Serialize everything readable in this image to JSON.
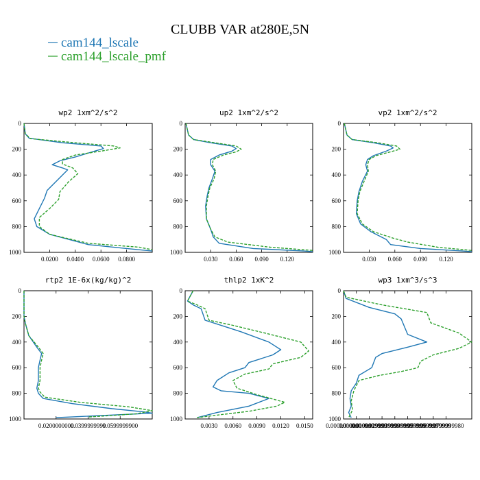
{
  "title": "CLUBB VAR at280E,5N",
  "legend": [
    {
      "label": "cam144_lscale",
      "color": "#1f77b4",
      "dash": "solid"
    },
    {
      "label": "cam144_lscale_pmf",
      "color": "#2ca02c",
      "dash": "dashed"
    }
  ],
  "chart_data": [
    {
      "type": "line",
      "title": "wp2  1xm^2/s^2",
      "ylim": [
        1000,
        0
      ],
      "xlim": [
        0,
        0.1
      ],
      "xticks": [
        0.02,
        0.04,
        0.06,
        0.08
      ],
      "xtick_labels": [
        "0.0200",
        "0.0400",
        "0.0600",
        "0.0800"
      ],
      "yticks": [
        0,
        200,
        400,
        600,
        800,
        1000
      ],
      "series": [
        {
          "name": "cam144_lscale",
          "x": [
            0,
            0.001,
            0.004,
            0.03,
            0.06,
            0.062,
            0.055,
            0.04,
            0.028,
            0.022,
            0.03,
            0.034,
            0.028,
            0.018,
            0.016,
            0.01,
            0.008,
            0.01,
            0.02,
            0.05,
            0.08,
            0.1
          ],
          "y": [
            0,
            80,
            115,
            150,
            175,
            195,
            215,
            260,
            290,
            320,
            345,
            360,
            420,
            520,
            580,
            700,
            740,
            800,
            860,
            940,
            970,
            990
          ]
        },
        {
          "name": "cam144_lscale_pmf",
          "x": [
            0,
            0.001,
            0.005,
            0.04,
            0.07,
            0.075,
            0.06,
            0.04,
            0.03,
            0.03,
            0.038,
            0.042,
            0.035,
            0.028,
            0.027,
            0.02,
            0.012,
            0.012,
            0.02,
            0.05,
            0.09,
            0.1
          ],
          "y": [
            0,
            80,
            118,
            150,
            175,
            190,
            215,
            245,
            280,
            315,
            345,
            390,
            450,
            530,
            590,
            660,
            730,
            800,
            860,
            930,
            960,
            980
          ]
        }
      ]
    },
    {
      "type": "line",
      "title": "up2  1xm^2/s^2",
      "ylim": [
        1000,
        0
      ],
      "xlim": [
        0,
        0.15
      ],
      "xticks": [
        0.03,
        0.06,
        0.09,
        0.12
      ],
      "xtick_labels": [
        "0.030",
        "0.060",
        "0.090",
        "0.120"
      ],
      "yticks": [
        0,
        200,
        400,
        600,
        800,
        1000
      ],
      "series": [
        {
          "name": "cam144_lscale",
          "x": [
            0.001,
            0.004,
            0.01,
            0.03,
            0.055,
            0.06,
            0.055,
            0.04,
            0.03,
            0.03,
            0.035,
            0.032,
            0.028,
            0.026,
            0.024,
            0.025,
            0.03,
            0.033,
            0.04,
            0.08,
            0.14,
            0.15
          ],
          "y": [
            0,
            90,
            125,
            150,
            175,
            195,
            215,
            245,
            280,
            320,
            370,
            430,
            500,
            560,
            640,
            740,
            820,
            880,
            930,
            970,
            990,
            995
          ]
        },
        {
          "name": "cam144_lscale_pmf",
          "x": [
            0.001,
            0.004,
            0.01,
            0.035,
            0.06,
            0.066,
            0.06,
            0.045,
            0.033,
            0.032,
            0.036,
            0.034,
            0.029,
            0.027,
            0.025,
            0.025,
            0.03,
            0.035,
            0.05,
            0.1,
            0.15
          ],
          "y": [
            0,
            90,
            125,
            150,
            175,
            200,
            220,
            245,
            280,
            320,
            370,
            430,
            500,
            560,
            640,
            740,
            820,
            880,
            920,
            960,
            985
          ]
        }
      ]
    },
    {
      "type": "line",
      "title": "vp2  1xm^2/s^2",
      "ylim": [
        1000,
        0
      ],
      "xlim": [
        0,
        0.15
      ],
      "xticks": [
        0.03,
        0.06,
        0.09,
        0.12
      ],
      "xtick_labels": [
        "0.030",
        "0.060",
        "0.090",
        "0.120"
      ],
      "yticks": [
        0,
        200,
        400,
        600,
        800,
        1000
      ],
      "series": [
        {
          "name": "cam144_lscale",
          "x": [
            0.001,
            0.004,
            0.01,
            0.035,
            0.055,
            0.058,
            0.05,
            0.035,
            0.028,
            0.026,
            0.028,
            0.022,
            0.018,
            0.016,
            0.015,
            0.02,
            0.032,
            0.05,
            0.055,
            0.09,
            0.14,
            0.15
          ],
          "y": [
            0,
            90,
            125,
            150,
            175,
            190,
            215,
            250,
            280,
            320,
            370,
            450,
            530,
            600,
            700,
            780,
            840,
            900,
            940,
            970,
            990,
            995
          ]
        },
        {
          "name": "cam144_lscale_pmf",
          "x": [
            0.001,
            0.004,
            0.01,
            0.04,
            0.062,
            0.066,
            0.055,
            0.038,
            0.03,
            0.028,
            0.029,
            0.024,
            0.019,
            0.017,
            0.016,
            0.022,
            0.035,
            0.058,
            0.075,
            0.11,
            0.15
          ],
          "y": [
            0,
            90,
            125,
            150,
            175,
            200,
            220,
            250,
            280,
            320,
            370,
            450,
            530,
            600,
            700,
            780,
            840,
            890,
            920,
            960,
            985
          ]
        }
      ]
    },
    {
      "type": "line",
      "title": "rtp2  1E-6x(kg/kg)^2",
      "ylim": [
        1000,
        0
      ],
      "xlim": [
        0,
        0.08
      ],
      "xticks": [
        0.02,
        0.04,
        0.06
      ],
      "xtick_labels": [
        "0.0200000000",
        "0.0399999999",
        "0.0599999900"
      ],
      "yticks": [
        0,
        200,
        400,
        600,
        800,
        1000
      ],
      "series": [
        {
          "name": "cam144_lscale",
          "x": [
            0,
            0,
            0.001,
            0.003,
            0.008,
            0.011,
            0.01,
            0.009,
            0.009,
            0.008,
            0.009,
            0.012,
            0.03,
            0.055,
            0.075,
            0.08,
            0.02
          ],
          "y": [
            0,
            200,
            260,
            350,
            440,
            490,
            540,
            600,
            700,
            760,
            800,
            840,
            880,
            920,
            945,
            955,
            990
          ]
        },
        {
          "name": "cam144_lscale_pmf",
          "x": [
            0,
            0,
            0.001,
            0.003,
            0.009,
            0.012,
            0.011,
            0.01,
            0.01,
            0.009,
            0.01,
            0.013,
            0.035,
            0.065,
            0.08,
            0.07,
            0.04
          ],
          "y": [
            0,
            200,
            260,
            350,
            440,
            490,
            540,
            600,
            700,
            760,
            790,
            830,
            870,
            905,
            935,
            960,
            985
          ]
        }
      ]
    },
    {
      "type": "line",
      "title": "thlp2  1xK^2",
      "ylim": [
        1000,
        0
      ],
      "xlim": [
        0,
        0.016
      ],
      "xticks": [
        0.003,
        0.006,
        0.009,
        0.012,
        0.015
      ],
      "xtick_labels": [
        "0.0030",
        "0.0060",
        "0.0090",
        "0.0120",
        "0.0150"
      ],
      "yticks": [
        0,
        200,
        400,
        600,
        800,
        1000
      ],
      "series": [
        {
          "name": "cam144_lscale",
          "x": [
            0.001,
            0.0003,
            0.001,
            0.002,
            0.0025,
            0.004,
            0.007,
            0.0105,
            0.012,
            0.011,
            0.008,
            0.0075,
            0.0055,
            0.004,
            0.0035,
            0.0045,
            0.008,
            0.0105,
            0.008,
            0.004,
            0.0015
          ],
          "y": [
            0,
            80,
            110,
            140,
            230,
            260,
            320,
            400,
            460,
            500,
            560,
            600,
            640,
            700,
            750,
            780,
            800,
            840,
            900,
            950,
            990
          ]
        },
        {
          "name": "cam144_lscale_pmf",
          "x": [
            0.001,
            0.0003,
            0.0015,
            0.0025,
            0.003,
            0.006,
            0.01,
            0.0145,
            0.0155,
            0.0145,
            0.011,
            0.0105,
            0.0075,
            0.006,
            0.0065,
            0.009,
            0.0125,
            0.0115,
            0.008,
            0.004,
            0.0015
          ],
          "y": [
            0,
            80,
            110,
            140,
            230,
            270,
            330,
            400,
            470,
            520,
            570,
            610,
            650,
            700,
            760,
            810,
            870,
            900,
            940,
            970,
            990
          ]
        }
      ]
    },
    {
      "type": "line",
      "title": "wp3  1xm^3/s^3",
      "ylim": [
        1000,
        0
      ],
      "xlim": [
        0,
        0.1
      ],
      "xticks": [
        0,
        0.01,
        0.02,
        0.03,
        0.04,
        0.05,
        0.06,
        0.07,
        0.08
      ],
      "xtick_labels": [
        "0.0000000000",
        "0.0100000000",
        "0.0199999999",
        "0.0299999999",
        "0.0399999999",
        "0.0499999999",
        "0.0599999999",
        "0.0699999999",
        "0.0799999980"
      ],
      "yticks": [
        0,
        200,
        400,
        600,
        800,
        1000
      ],
      "series": [
        {
          "name": "cam144_lscale",
          "x": [
            0,
            0.002,
            0.02,
            0.04,
            0.045,
            0.05,
            0.065,
            0.05,
            0.03,
            0.025,
            0.022,
            0.012,
            0.01,
            0.006,
            0.005,
            0.006,
            0.004,
            0.006
          ],
          "y": [
            0,
            60,
            130,
            180,
            220,
            340,
            400,
            440,
            490,
            520,
            600,
            660,
            720,
            780,
            840,
            900,
            950,
            990
          ]
        },
        {
          "name": "cam144_lscale_pmf",
          "x": [
            0,
            0.002,
            0.03,
            0.065,
            0.068,
            0.09,
            0.1,
            0.09,
            0.07,
            0.06,
            0.058,
            0.045,
            0.028,
            0.012,
            0.008,
            0.006,
            0.007,
            0.004
          ],
          "y": [
            0,
            50,
            110,
            170,
            250,
            330,
            400,
            450,
            500,
            550,
            600,
            630,
            660,
            700,
            780,
            860,
            930,
            990
          ]
        }
      ]
    }
  ]
}
